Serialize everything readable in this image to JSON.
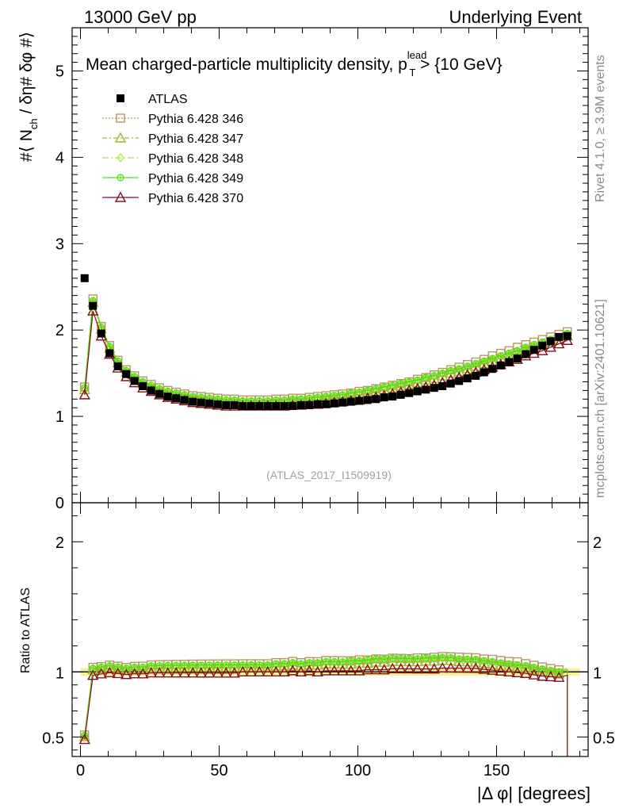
{
  "header": {
    "left": "13000 GeV pp",
    "right": "Underlying Event"
  },
  "side_labels": {
    "rivet": "Rivet 4.1.0, ≥ 3.9M events",
    "mcplots": "mcplots.cern.ch [arXiv:2401.10621]"
  },
  "colors": {
    "atlas": "#000000",
    "p346": "#b59a5e",
    "p347": "#a4b82c",
    "p348": "#a8ec3c",
    "p349": "#4ee00f",
    "p370": "#8b0c1c",
    "ref_band": "#f3f39a"
  },
  "chart_data": [
    {
      "type": "scatter",
      "panel": "main",
      "title_parts": {
        "main": "Mean charged-particle multiplicity density, p",
        "sup": "lead",
        "sub": "T",
        "tail": " > {10 GeV}"
      },
      "ylabel_parts": {
        "pre": "#⟨ N",
        "sub": "ch",
        "post": " / δη# δφ #⟩"
      },
      "analysis_label": "(ATLAS_2017_I1509919)",
      "xlim": [
        -3,
        183
      ],
      "ylim": [
        0,
        5.5
      ],
      "yticks": [
        0,
        1,
        2,
        3,
        4,
        5
      ],
      "ytick_labels": [
        "0",
        "1",
        "2",
        "3",
        "4",
        "5"
      ],
      "legend_position": "top-left",
      "series": [
        {
          "name": "ATLAS",
          "marker": "square-filled",
          "values": [
            2.6,
            2.28,
            1.96,
            1.73,
            1.58,
            1.49,
            1.41,
            1.35,
            1.3,
            1.26,
            1.23,
            1.21,
            1.19,
            1.17,
            1.16,
            1.15,
            1.14,
            1.13,
            1.13,
            1.12,
            1.12,
            1.12,
            1.12,
            1.12,
            1.12,
            1.12,
            1.13,
            1.13,
            1.14,
            1.14,
            1.15,
            1.16,
            1.17,
            1.18,
            1.19,
            1.2,
            1.22,
            1.23,
            1.25,
            1.27,
            1.29,
            1.31,
            1.33,
            1.35,
            1.38,
            1.41,
            1.44,
            1.47,
            1.51,
            1.55,
            1.59,
            1.63,
            1.67,
            1.72,
            1.77,
            1.82,
            1.87,
            1.92,
            1.93
          ]
        },
        {
          "name": "Pythia 6.428 346",
          "marker": "square-open",
          "values": [
            1.34,
            2.36,
            2.04,
            1.82,
            1.65,
            1.54,
            1.47,
            1.41,
            1.37,
            1.33,
            1.3,
            1.28,
            1.26,
            1.24,
            1.23,
            1.22,
            1.21,
            1.2,
            1.2,
            1.19,
            1.19,
            1.19,
            1.19,
            1.2,
            1.2,
            1.21,
            1.21,
            1.22,
            1.23,
            1.24,
            1.25,
            1.26,
            1.27,
            1.29,
            1.3,
            1.32,
            1.34,
            1.36,
            1.38,
            1.4,
            1.43,
            1.45,
            1.48,
            1.51,
            1.54,
            1.57,
            1.6,
            1.63,
            1.66,
            1.7,
            1.73,
            1.76,
            1.8,
            1.83,
            1.86,
            1.89,
            1.92,
            1.95,
            1.98
          ]
        },
        {
          "name": "Pythia 6.428 347",
          "marker": "triangle-open",
          "values": [
            1.31,
            2.32,
            2.01,
            1.79,
            1.62,
            1.51,
            1.44,
            1.38,
            1.34,
            1.3,
            1.27,
            1.25,
            1.23,
            1.21,
            1.2,
            1.19,
            1.18,
            1.17,
            1.17,
            1.16,
            1.16,
            1.16,
            1.16,
            1.17,
            1.17,
            1.18,
            1.18,
            1.19,
            1.2,
            1.21,
            1.22,
            1.23,
            1.24,
            1.26,
            1.27,
            1.29,
            1.31,
            1.33,
            1.35,
            1.37,
            1.39,
            1.42,
            1.44,
            1.47,
            1.5,
            1.52,
            1.55,
            1.58,
            1.61,
            1.64,
            1.67,
            1.7,
            1.73,
            1.77,
            1.8,
            1.83,
            1.86,
            1.89,
            1.93
          ]
        },
        {
          "name": "Pythia 6.428 348",
          "marker": "diamond-open",
          "values": [
            1.32,
            2.33,
            2.02,
            1.8,
            1.63,
            1.52,
            1.45,
            1.39,
            1.35,
            1.31,
            1.28,
            1.26,
            1.24,
            1.22,
            1.21,
            1.2,
            1.19,
            1.18,
            1.18,
            1.17,
            1.17,
            1.17,
            1.17,
            1.18,
            1.18,
            1.19,
            1.19,
            1.2,
            1.21,
            1.22,
            1.23,
            1.24,
            1.26,
            1.27,
            1.29,
            1.31,
            1.33,
            1.35,
            1.37,
            1.39,
            1.41,
            1.44,
            1.46,
            1.49,
            1.52,
            1.54,
            1.57,
            1.6,
            1.63,
            1.66,
            1.69,
            1.72,
            1.75,
            1.79,
            1.82,
            1.85,
            1.88,
            1.91,
            1.95
          ]
        },
        {
          "name": "Pythia 6.428 349",
          "marker": "circle-cross",
          "values": [
            1.33,
            2.34,
            2.03,
            1.81,
            1.64,
            1.53,
            1.46,
            1.4,
            1.36,
            1.32,
            1.29,
            1.27,
            1.25,
            1.23,
            1.22,
            1.21,
            1.2,
            1.19,
            1.19,
            1.18,
            1.18,
            1.18,
            1.18,
            1.19,
            1.19,
            1.2,
            1.2,
            1.21,
            1.22,
            1.23,
            1.24,
            1.25,
            1.27,
            1.28,
            1.3,
            1.32,
            1.34,
            1.36,
            1.38,
            1.4,
            1.42,
            1.45,
            1.47,
            1.5,
            1.53,
            1.55,
            1.58,
            1.61,
            1.64,
            1.67,
            1.7,
            1.73,
            1.76,
            1.8,
            1.83,
            1.86,
            1.89,
            1.92,
            1.96
          ]
        },
        {
          "name": "Pythia 6.428 370",
          "marker": "triangle-open",
          "values": [
            1.25,
            2.22,
            1.93,
            1.72,
            1.56,
            1.46,
            1.39,
            1.33,
            1.29,
            1.25,
            1.22,
            1.2,
            1.18,
            1.16,
            1.15,
            1.14,
            1.13,
            1.12,
            1.12,
            1.12,
            1.12,
            1.12,
            1.12,
            1.12,
            1.12,
            1.13,
            1.13,
            1.14,
            1.14,
            1.15,
            1.16,
            1.17,
            1.18,
            1.19,
            1.21,
            1.22,
            1.24,
            1.26,
            1.28,
            1.3,
            1.32,
            1.34,
            1.36,
            1.39,
            1.42,
            1.45,
            1.48,
            1.51,
            1.54,
            1.57,
            1.6,
            1.63,
            1.66,
            1.7,
            1.73,
            1.76,
            1.8,
            1.84,
            1.88
          ]
        }
      ],
      "x_start": 1.5,
      "x_step": 3
    },
    {
      "type": "line",
      "panel": "ratio",
      "ylabel": "Ratio to ATLAS",
      "xlabel": "|Δ φ| [degrees]",
      "xlim": [
        -3,
        183
      ],
      "ylim": [
        0.35,
        2.3
      ],
      "xticks": [
        0,
        50,
        100,
        150
      ],
      "xtick_labels": [
        "0",
        "50",
        "100",
        "150"
      ],
      "yticks": [
        0.5,
        1,
        2
      ],
      "ytick_labels": [
        "0.5",
        "1",
        "2"
      ],
      "reference": 1.0,
      "note": "ratio = model / ATLAS, computed per bin from the main-panel series"
    }
  ]
}
